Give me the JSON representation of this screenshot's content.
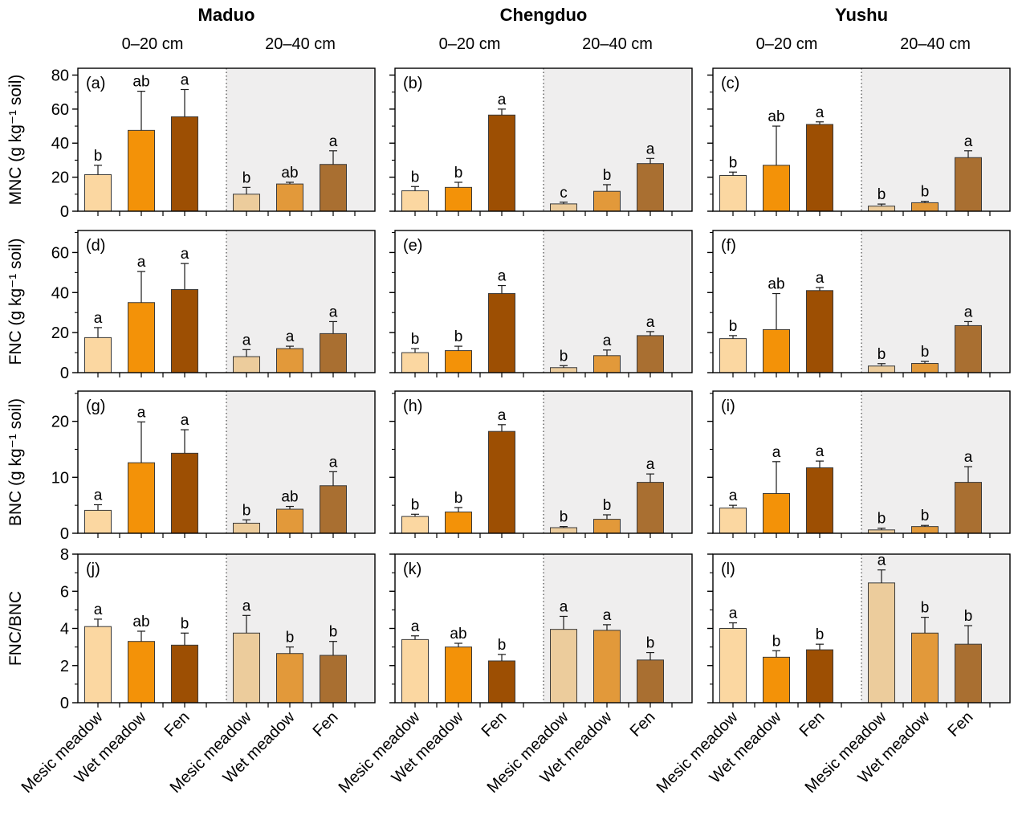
{
  "chart_data": {
    "type": "bar",
    "title": "",
    "grid": false,
    "legend": "none",
    "sites": [
      "Maduo",
      "Chengduo",
      "Yushu"
    ],
    "depths": [
      "0–20 cm",
      "20–40 cm"
    ],
    "categories": [
      "Mesic meadow",
      "Wet meadow",
      "Fen"
    ],
    "colors": {
      "depth0": [
        "#FBD7A1",
        "#F39208",
        "#9D4F03"
      ],
      "depth20": [
        "#ECCC9C",
        "#E2993A",
        "#A96F31"
      ],
      "shade": "#EFEEEE",
      "panel_border": "#000000",
      "bar_stroke": "#3A3A3A",
      "error_bar": "#1A1A1A",
      "divider": "#444444"
    },
    "rows": [
      {
        "ylabel": "MNC (g kg⁻¹ soil)",
        "ylim": [
          0,
          84
        ],
        "yticks": [
          0,
          20,
          40,
          60,
          80
        ],
        "minor_step": 10,
        "panels": [
          {
            "letter": "(a)",
            "site": "Maduo",
            "groups": [
              {
                "depth": "0–20 cm",
                "values": [
                  21.5,
                  47.5,
                  55.5
                ],
                "errors": [
                  5.5,
                  23,
                  16
                ],
                "sig": [
                  "b",
                  "ab",
                  "a"
                ]
              },
              {
                "depth": "20–40 cm",
                "values": [
                  10,
                  16,
                  27.5
                ],
                "errors": [
                  4,
                  1,
                  8
                ],
                "sig": [
                  "b",
                  "ab",
                  "a"
                ]
              }
            ]
          },
          {
            "letter": "(b)",
            "site": "Chengduo",
            "groups": [
              {
                "depth": "0–20 cm",
                "values": [
                  12,
                  14,
                  56.5
                ],
                "errors": [
                  2.5,
                  3,
                  3.5
                ],
                "sig": [
                  "b",
                  "b",
                  "a"
                ]
              },
              {
                "depth": "20–40 cm",
                "values": [
                  4.3,
                  11.7,
                  28
                ],
                "errors": [
                  1,
                  3.9,
                  3
                ],
                "sig": [
                  "c",
                  "b",
                  "a"
                ]
              }
            ]
          },
          {
            "letter": "(c)",
            "site": "Yushu",
            "groups": [
              {
                "depth": "0–20 cm",
                "values": [
                  21,
                  27,
                  51
                ],
                "errors": [
                  2,
                  23,
                  1.5
                ],
                "sig": [
                  "b",
                  "ab",
                  "a"
                ]
              },
              {
                "depth": "20–40 cm",
                "values": [
                  3,
                  5,
                  31.5
                ],
                "errors": [
                  1.2,
                  0.8,
                  4
                ],
                "sig": [
                  "b",
                  "b",
                  "a"
                ]
              }
            ]
          }
        ]
      },
      {
        "ylabel": "FNC (g kg⁻¹ soil)",
        "ylim": [
          0,
          71
        ],
        "yticks": [
          0,
          20,
          40,
          60
        ],
        "minor_step": 10,
        "panels": [
          {
            "letter": "(d)",
            "site": "Maduo",
            "groups": [
              {
                "depth": "0–20 cm",
                "values": [
                  17.5,
                  35,
                  41.5
                ],
                "errors": [
                  5,
                  15.5,
                  13
                ],
                "sig": [
                  "a",
                  "a",
                  "a"
                ]
              },
              {
                "depth": "20–40 cm",
                "values": [
                  8,
                  12,
                  19.5
                ],
                "errors": [
                  3.5,
                  1.2,
                  6
                ],
                "sig": [
                  "a",
                  "a",
                  "a"
                ]
              }
            ]
          },
          {
            "letter": "(e)",
            "site": "Chengduo",
            "groups": [
              {
                "depth": "0–20 cm",
                "values": [
                  10,
                  11,
                  39.5
                ],
                "errors": [
                  2,
                  2.2,
                  4
                ],
                "sig": [
                  "b",
                  "b",
                  "a"
                ]
              },
              {
                "depth": "20–40 cm",
                "values": [
                  2.5,
                  8.5,
                  18.5
                ],
                "errors": [
                  1,
                  2.8,
                  2
                ],
                "sig": [
                  "b",
                  "a",
                  "a"
                ]
              }
            ]
          },
          {
            "letter": "(f)",
            "site": "Yushu",
            "groups": [
              {
                "depth": "0–20 cm",
                "values": [
                  17,
                  21.5,
                  41
                ],
                "errors": [
                  1.5,
                  18,
                  1.5
                ],
                "sig": [
                  "b",
                  "ab",
                  "a"
                ]
              },
              {
                "depth": "20–40 cm",
                "values": [
                  3.3,
                  4.6,
                  23.5
                ],
                "errors": [
                  1.2,
                  1,
                  2
                ],
                "sig": [
                  "b",
                  "b",
                  "a"
                ]
              }
            ]
          }
        ]
      },
      {
        "ylabel": "BNC (g kg⁻¹ soil)",
        "ylim": [
          0,
          25.4
        ],
        "yticks": [
          0,
          10,
          20
        ],
        "minor_step": 5,
        "panels": [
          {
            "letter": "(g)",
            "site": "Maduo",
            "groups": [
              {
                "depth": "0–20 cm",
                "values": [
                  4.1,
                  12.6,
                  14.3
                ],
                "errors": [
                  1,
                  7.3,
                  4.2
                ],
                "sig": [
                  "a",
                  "a",
                  "a"
                ]
              },
              {
                "depth": "20–40 cm",
                "values": [
                  1.8,
                  4.3,
                  8.5
                ],
                "errors": [
                  0.6,
                  0.5,
                  2.5
                ],
                "sig": [
                  "b",
                  "ab",
                  "a"
                ]
              }
            ]
          },
          {
            "letter": "(h)",
            "site": "Chengduo",
            "groups": [
              {
                "depth": "0–20 cm",
                "values": [
                  3.0,
                  3.8,
                  18.2
                ],
                "errors": [
                  0.4,
                  0.8,
                  1.2
                ],
                "sig": [
                  "b",
                  "b",
                  "a"
                ]
              },
              {
                "depth": "20–40 cm",
                "values": [
                  1.0,
                  2.5,
                  9.1
                ],
                "errors": [
                  0.2,
                  0.8,
                  1.5
                ],
                "sig": [
                  "b",
                  "b",
                  "a"
                ]
              }
            ]
          },
          {
            "letter": "(i)",
            "site": "Yushu",
            "groups": [
              {
                "depth": "0–20 cm",
                "values": [
                  4.5,
                  7.1,
                  11.7
                ],
                "errors": [
                  0.5,
                  5.7,
                  1.2
                ],
                "sig": [
                  "a",
                  "a",
                  "a"
                ]
              },
              {
                "depth": "20–40 cm",
                "values": [
                  0.6,
                  1.2,
                  9.1
                ],
                "errors": [
                  0.3,
                  0.2,
                  2.8
                ],
                "sig": [
                  "b",
                  "b",
                  "a"
                ]
              }
            ]
          }
        ]
      },
      {
        "ylabel": "FNC/BNC",
        "ylim": [
          0,
          8
        ],
        "yticks": [
          0,
          2,
          4,
          6,
          8
        ],
        "minor_step": 1,
        "panels": [
          {
            "letter": "(j)",
            "site": "Maduo",
            "groups": [
              {
                "depth": "0–20 cm",
                "values": [
                  4.1,
                  3.3,
                  3.1
                ],
                "errors": [
                  0.4,
                  0.55,
                  0.65
                ],
                "sig": [
                  "a",
                  "ab",
                  "b"
                ]
              },
              {
                "depth": "20–40 cm",
                "values": [
                  3.75,
                  2.65,
                  2.55
                ],
                "errors": [
                  0.95,
                  0.35,
                  0.75
                ],
                "sig": [
                  "a",
                  "b",
                  "b"
                ]
              }
            ]
          },
          {
            "letter": "(k)",
            "site": "Chengduo",
            "groups": [
              {
                "depth": "0–20 cm",
                "values": [
                  3.4,
                  3.0,
                  2.25
                ],
                "errors": [
                  0.2,
                  0.2,
                  0.35
                ],
                "sig": [
                  "a",
                  "ab",
                  "b"
                ]
              },
              {
                "depth": "20–40 cm",
                "values": [
                  3.95,
                  3.9,
                  2.3
                ],
                "errors": [
                  0.7,
                  0.3,
                  0.4
                ],
                "sig": [
                  "a",
                  "a",
                  "b"
                ]
              }
            ]
          },
          {
            "letter": "(l)",
            "site": "Yushu",
            "groups": [
              {
                "depth": "0–20 cm",
                "values": [
                  4.0,
                  2.45,
                  2.85
                ],
                "errors": [
                  0.3,
                  0.35,
                  0.3
                ],
                "sig": [
                  "a",
                  "b",
                  "b"
                ]
              },
              {
                "depth": "20–40 cm",
                "values": [
                  6.45,
                  3.75,
                  3.15
                ],
                "errors": [
                  0.7,
                  0.85,
                  1.0
                ],
                "sig": [
                  "a",
                  "b",
                  "b"
                ]
              }
            ]
          }
        ]
      }
    ]
  }
}
